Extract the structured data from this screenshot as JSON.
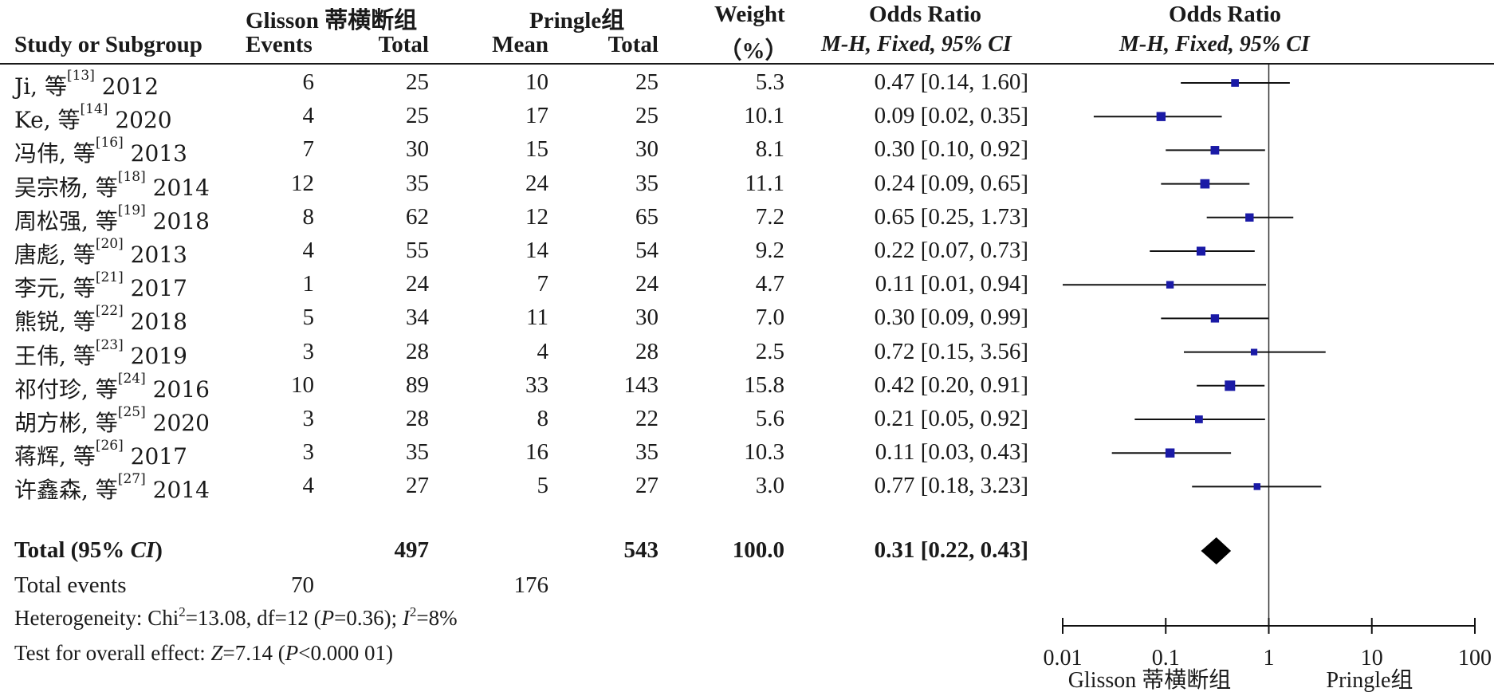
{
  "header": {
    "group1": "Glisson 蒂横断组",
    "group2": "Pringle组",
    "weight": "Weight",
    "or_title": "Odds Ratio",
    "or_method": "M-H, Fixed, 95% CI",
    "plot_title": "Odds Ratio",
    "plot_method": "M-H, Fixed, 95% CI",
    "study": "Study or Subgroup",
    "events": "Events",
    "total1": "Total",
    "mean": "Mean",
    "total2": "Total",
    "pct": "（%）"
  },
  "total_row": {
    "label": "Total (95% ",
    "label_ci": "CI",
    "label_end": ")",
    "total1": "497",
    "total2": "543",
    "weight": "100.0",
    "or": "0.31 [0.22, 0.43]"
  },
  "events_row": {
    "label": "Total events",
    "events1": "70",
    "events2": "176"
  },
  "heterogeneity": {
    "prefix": "Heterogeneity: Chi",
    "sup": "2",
    "mid": "=13.08, df=12 (",
    "p": "P",
    "p_rest": "=0.36); ",
    "i": "I",
    "i_sup": "2",
    "i_rest": "=8%"
  },
  "overall": {
    "prefix": "Test for overall effect: ",
    "z": "Z",
    "z_rest": "=7.14 (",
    "p": "P",
    "p_rest": "<0.000 01)"
  },
  "axis": {
    "ticks": [
      "0.01",
      "0.1",
      "1",
      "10",
      "100"
    ],
    "left_label": "Glisson 蒂横断组",
    "right_label": "Pringle组"
  },
  "colors": {
    "square": "#1a1aa6",
    "text": "#1a1a1a",
    "diamond": "#000000"
  },
  "chart_data": {
    "type": "forest",
    "scale": "log",
    "xlim": [
      0.01,
      100
    ],
    "null_line": 1,
    "studies": [
      {
        "name": "Ji, 等",
        "ref": "[13]",
        "year": "2012",
        "events1": "6",
        "total1": "25",
        "mean2": "10",
        "total2": "25",
        "weight": "5.3",
        "or_text": "0.47 [0.14, 1.60]",
        "or": 0.47,
        "lo": 0.14,
        "hi": 1.6
      },
      {
        "name": "Ke, 等",
        "ref": "[14]",
        "year": "2020",
        "events1": "4",
        "total1": "25",
        "mean2": "17",
        "total2": "25",
        "weight": "10.1",
        "or_text": "0.09 [0.02, 0.35]",
        "or": 0.09,
        "lo": 0.02,
        "hi": 0.35
      },
      {
        "name": "冯伟, 等",
        "ref": "[16]",
        "year": "2013",
        "events1": "7",
        "total1": "30",
        "mean2": "15",
        "total2": "30",
        "weight": "8.1",
        "or_text": "0.30 [0.10, 0.92]",
        "or": 0.3,
        "lo": 0.1,
        "hi": 0.92
      },
      {
        "name": "吴宗杨, 等",
        "ref": "[18]",
        "year": "2014",
        "events1": "12",
        "total1": "35",
        "mean2": "24",
        "total2": "35",
        "weight": "11.1",
        "or_text": "0.24 [0.09, 0.65]",
        "or": 0.24,
        "lo": 0.09,
        "hi": 0.65
      },
      {
        "name": "周松强, 等",
        "ref": "[19]",
        "year": "2018",
        "events1": "8",
        "total1": "62",
        "mean2": "12",
        "total2": "65",
        "weight": "7.2",
        "or_text": "0.65 [0.25, 1.73]",
        "or": 0.65,
        "lo": 0.25,
        "hi": 1.73
      },
      {
        "name": "唐彪, 等",
        "ref": "[20]",
        "year": "2013",
        "events1": "4",
        "total1": "55",
        "mean2": "14",
        "total2": "54",
        "weight": "9.2",
        "or_text": "0.22 [0.07, 0.73]",
        "or": 0.22,
        "lo": 0.07,
        "hi": 0.73
      },
      {
        "name": "李元, 等",
        "ref": "[21]",
        "year": "2017",
        "events1": "1",
        "total1": "24",
        "mean2": "7",
        "total2": "24",
        "weight": "4.7",
        "or_text": "0.11 [0.01, 0.94]",
        "or": 0.11,
        "lo": 0.01,
        "hi": 0.94
      },
      {
        "name": "熊锐, 等",
        "ref": "[22]",
        "year": "2018",
        "events1": "5",
        "total1": "34",
        "mean2": "11",
        "total2": "30",
        "weight": "7.0",
        "or_text": "0.30 [0.09, 0.99]",
        "or": 0.3,
        "lo": 0.09,
        "hi": 0.99
      },
      {
        "name": "王伟, 等",
        "ref": "[23]",
        "year": "2019",
        "events1": "3",
        "total1": "28",
        "mean2": "4",
        "total2": "28",
        "weight": "2.5",
        "or_text": "0.72 [0.15, 3.56]",
        "or": 0.72,
        "lo": 0.15,
        "hi": 3.56
      },
      {
        "name": "祁付珍, 等",
        "ref": "[24]",
        "year": "2016",
        "events1": "10",
        "total1": "89",
        "mean2": "33",
        "total2": "143",
        "weight": "15.8",
        "or_text": "0.42 [0.20, 0.91]",
        "or": 0.42,
        "lo": 0.2,
        "hi": 0.91
      },
      {
        "name": "胡方彬, 等",
        "ref": "[25]",
        "year": "2020",
        "events1": "3",
        "total1": "28",
        "mean2": "8",
        "total2": "22",
        "weight": "5.6",
        "or_text": "0.21 [0.05, 0.92]",
        "or": 0.21,
        "lo": 0.05,
        "hi": 0.92
      },
      {
        "name": "蒋辉, 等",
        "ref": "[26]",
        "year": "2017",
        "events1": "3",
        "total1": "35",
        "mean2": "16",
        "total2": "35",
        "weight": "10.3",
        "or_text": "0.11 [0.03, 0.43]",
        "or": 0.11,
        "lo": 0.03,
        "hi": 0.43
      },
      {
        "name": "许鑫森, 等",
        "ref": "[27]",
        "year": "2014",
        "events1": "4",
        "total1": "27",
        "mean2": "5",
        "total2": "27",
        "weight": "3.0",
        "or_text": "0.77 [0.18, 3.23]",
        "or": 0.77,
        "lo": 0.18,
        "hi": 3.23
      }
    ],
    "pooled": {
      "or": 0.31,
      "lo": 0.22,
      "hi": 0.43,
      "weight": 100.0
    }
  }
}
